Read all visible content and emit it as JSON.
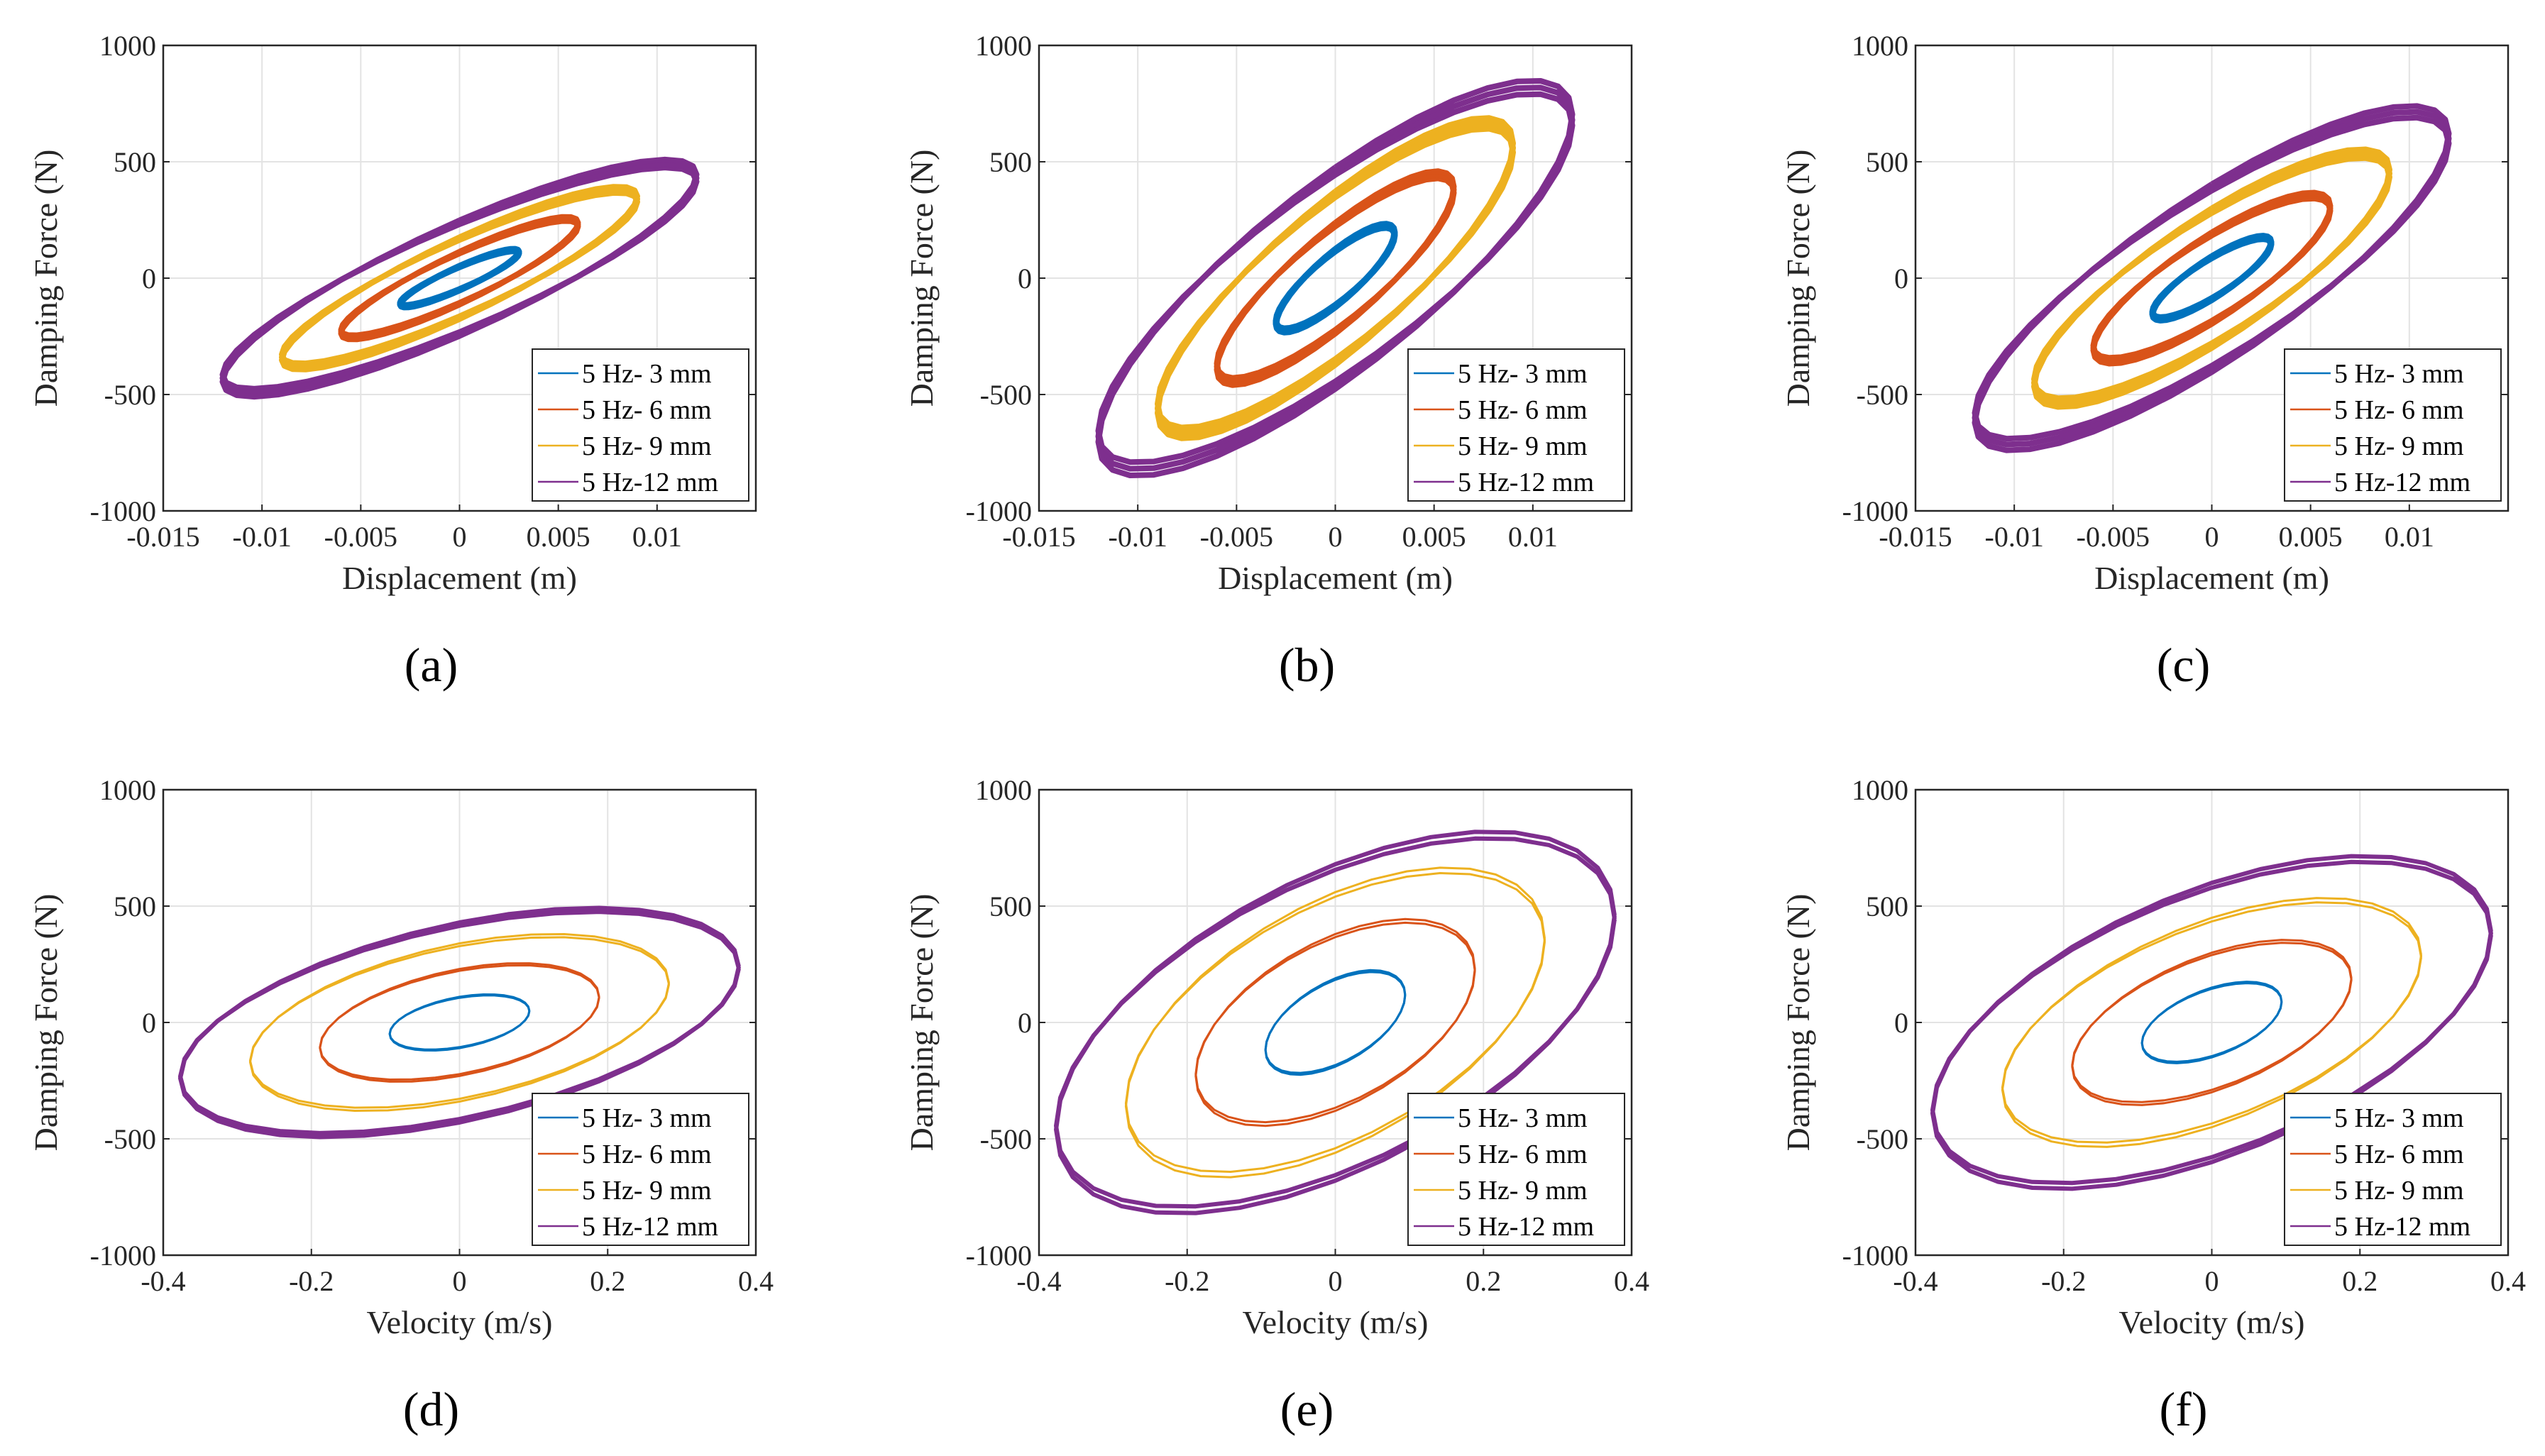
{
  "colors": {
    "3mm": "#0072BD",
    "6mm": "#D95319",
    "9mm": "#EDB120",
    "12mm": "#7E2F8E"
  },
  "legend": [
    "5 Hz- 3 mm",
    "5 Hz- 6 mm",
    "5 Hz- 9 mm",
    "5 Hz-12 mm"
  ],
  "chart_data": [
    {
      "type": "line",
      "panel": "(a)",
      "xlabel": "Displacement (m)",
      "ylabel": "Damping Force (N)",
      "xvar": "displacement",
      "xlim": [
        -0.015,
        0.015
      ],
      "ylim": [
        -1000,
        1000
      ],
      "xticks": [
        -0.015,
        -0.01,
        -0.005,
        0,
        0.005,
        0.01
      ],
      "xtick_labels": [
        "-0.015",
        "-0.01",
        "-0.005",
        "0",
        "0.005",
        "0.01"
      ],
      "yticks": [
        -1000,
        -500,
        0,
        500,
        1000
      ],
      "ytick_labels": [
        "-1000",
        "-500",
        "0",
        "500",
        "1000"
      ],
      "grid": true,
      "legend_position": "bottom-right",
      "series": [
        {
          "name": "5 Hz- 3 mm",
          "amplitude_m": 0.003,
          "elastic_force_N": 110,
          "damping_force_N": 50
        },
        {
          "name": "5 Hz- 6 mm",
          "amplitude_m": 0.006,
          "elastic_force_N": 230,
          "damping_force_N": 110
        },
        {
          "name": "5 Hz- 9 mm",
          "amplitude_m": 0.009,
          "elastic_force_N": 340,
          "damping_force_N": 170
        },
        {
          "name": "5 Hz-12 mm",
          "amplitude_m": 0.012,
          "elastic_force_N": 430,
          "damping_force_N": 240
        }
      ]
    },
    {
      "type": "line",
      "panel": "(b)",
      "xlabel": "Displacement (m)",
      "ylabel": "Damping Force (N)",
      "xvar": "displacement",
      "xlim": [
        -0.015,
        0.015
      ],
      "ylim": [
        -1000,
        1000
      ],
      "xticks": [
        -0.015,
        -0.01,
        -0.005,
        0,
        0.005,
        0.01
      ],
      "xtick_labels": [
        "-0.015",
        "-0.01",
        "-0.005",
        "0",
        "0.005",
        "0.01"
      ],
      "yticks": [
        -1000,
        -500,
        0,
        500,
        1000
      ],
      "ytick_labels": [
        "-1000",
        "-500",
        "0",
        "500",
        "1000"
      ],
      "grid": true,
      "legend_position": "bottom-right",
      "series": [
        {
          "name": "5 Hz- 3 mm",
          "amplitude_m": 0.003,
          "elastic_force_N": 190,
          "damping_force_N": 120
        },
        {
          "name": "5 Hz- 6 mm",
          "amplitude_m": 0.006,
          "elastic_force_N": 380,
          "damping_force_N": 230
        },
        {
          "name": "5 Hz- 9 mm",
          "amplitude_m": 0.009,
          "elastic_force_N": 560,
          "damping_force_N": 360
        },
        {
          "name": "5 Hz-12 mm",
          "amplitude_m": 0.012,
          "elastic_force_N": 680,
          "damping_force_N": 460
        }
      ]
    },
    {
      "type": "line",
      "panel": "(c)",
      "xlabel": "Displacement (m)",
      "ylabel": "Damping Force (N)",
      "xvar": "displacement",
      "xlim": [
        -0.015,
        0.015
      ],
      "ylim": [
        -1000,
        1000
      ],
      "xticks": [
        -0.015,
        -0.01,
        -0.005,
        0,
        0.005,
        0.01
      ],
      "xtick_labels": [
        "-0.015",
        "-0.01",
        "-0.005",
        "0",
        "0.005",
        "0.01"
      ],
      "yticks": [
        -1000,
        -500,
        0,
        500,
        1000
      ],
      "ytick_labels": [
        "-1000",
        "-500",
        "0",
        "500",
        "1000"
      ],
      "grid": true,
      "legend_position": "bottom-right",
      "series": [
        {
          "name": "5 Hz- 3 mm",
          "amplitude_m": 0.003,
          "elastic_force_N": 150,
          "damping_force_N": 90
        },
        {
          "name": "5 Hz- 6 mm",
          "amplitude_m": 0.006,
          "elastic_force_N": 300,
          "damping_force_N": 190
        },
        {
          "name": "5 Hz- 9 mm",
          "amplitude_m": 0.009,
          "elastic_force_N": 450,
          "damping_force_N": 290
        },
        {
          "name": "5 Hz-12 mm",
          "amplitude_m": 0.012,
          "elastic_force_N": 600,
          "damping_force_N": 390
        }
      ]
    },
    {
      "type": "line",
      "panel": "(d)",
      "xlabel": "Velocity (m/s)",
      "ylabel": "Damping Force (N)",
      "xvar": "velocity",
      "xlim": [
        -0.4,
        0.4
      ],
      "ylim": [
        -1000,
        1000
      ],
      "xticks": [
        -0.4,
        -0.2,
        0,
        0.2,
        0.4
      ],
      "xtick_labels": [
        "-0.4",
        "-0.2",
        "0",
        "0.2",
        "0.4"
      ],
      "yticks": [
        -1000,
        -500,
        0,
        500,
        1000
      ],
      "ytick_labels": [
        "-1000",
        "-500",
        "0",
        "500",
        "1000"
      ],
      "grid": true,
      "legend_position": "bottom-right",
      "series": [
        {
          "name": "5 Hz- 3 mm",
          "amplitude_m": 0.003,
          "elastic_force_N": 110,
          "damping_force_N": 50
        },
        {
          "name": "5 Hz- 6 mm",
          "amplitude_m": 0.006,
          "elastic_force_N": 230,
          "damping_force_N": 110
        },
        {
          "name": "5 Hz- 9 mm",
          "amplitude_m": 0.009,
          "elastic_force_N": 340,
          "damping_force_N": 170
        },
        {
          "name": "5 Hz-12 mm",
          "amplitude_m": 0.012,
          "elastic_force_N": 430,
          "damping_force_N": 240
        }
      ]
    },
    {
      "type": "line",
      "panel": "(e)",
      "xlabel": "Velocity (m/s)",
      "ylabel": "Damping Force (N)",
      "xvar": "velocity",
      "xlim": [
        -0.4,
        0.4
      ],
      "ylim": [
        -1000,
        1000
      ],
      "xticks": [
        -0.4,
        -0.2,
        0,
        0.2,
        0.4
      ],
      "xtick_labels": [
        "-0.4",
        "-0.2",
        "0",
        "0.2",
        "0.4"
      ],
      "yticks": [
        -1000,
        -500,
        0,
        500,
        1000
      ],
      "ytick_labels": [
        "-1000",
        "-500",
        "0",
        "500",
        "1000"
      ],
      "grid": true,
      "legend_position": "bottom-right",
      "series": [
        {
          "name": "5 Hz- 3 mm",
          "amplitude_m": 0.003,
          "elastic_force_N": 190,
          "damping_force_N": 120
        },
        {
          "name": "5 Hz- 6 mm",
          "amplitude_m": 0.006,
          "elastic_force_N": 380,
          "damping_force_N": 230
        },
        {
          "name": "5 Hz- 9 mm",
          "amplitude_m": 0.009,
          "elastic_force_N": 560,
          "damping_force_N": 360
        },
        {
          "name": "5 Hz-12 mm",
          "amplitude_m": 0.012,
          "elastic_force_N": 680,
          "damping_force_N": 460
        }
      ]
    },
    {
      "type": "line",
      "panel": "(f)",
      "xlabel": "Velocity (m/s)",
      "ylabel": "Damping Force (N)",
      "xvar": "velocity",
      "xlim": [
        -0.4,
        0.4
      ],
      "ylim": [
        -1000,
        1000
      ],
      "xticks": [
        -0.4,
        -0.2,
        0,
        0.2,
        0.4
      ],
      "xtick_labels": [
        "-0.4",
        "-0.2",
        "0",
        "0.2",
        "0.4"
      ],
      "yticks": [
        -1000,
        -500,
        0,
        500,
        1000
      ],
      "ytick_labels": [
        "-1000",
        "-500",
        "0",
        "500",
        "1000"
      ],
      "grid": true,
      "legend_position": "bottom-right",
      "series": [
        {
          "name": "5 Hz- 3 mm",
          "amplitude_m": 0.003,
          "elastic_force_N": 150,
          "damping_force_N": 90
        },
        {
          "name": "5 Hz- 6 mm",
          "amplitude_m": 0.006,
          "elastic_force_N": 300,
          "damping_force_N": 190
        },
        {
          "name": "5 Hz- 9 mm",
          "amplitude_m": 0.009,
          "elastic_force_N": 450,
          "damping_force_N": 290
        },
        {
          "name": "5 Hz-12 mm",
          "amplitude_m": 0.012,
          "elastic_force_N": 600,
          "damping_force_N": 390
        }
      ]
    }
  ],
  "frequency_hz": 5
}
